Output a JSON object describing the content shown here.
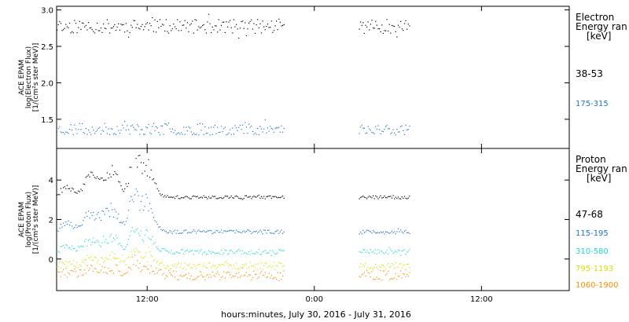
{
  "chart_data": [
    {
      "type": "scatter",
      "panel": "electron",
      "ylabel": [
        "ACE EPAM",
        "log(Electron Flux)",
        "[1/(cm²s ster MeV)]"
      ],
      "ylim": [
        1.1,
        3.05
      ],
      "yticks": [
        1.5,
        2.0,
        2.5,
        3.0
      ],
      "ytick_labels": [
        "1.5",
        "2.0",
        "2.5",
        "3.0"
      ],
      "legend_title": [
        "Electron",
        "Energy ran",
        "[keV]"
      ],
      "series": [
        {
          "name": "38-53",
          "color": "#000000",
          "mean": 2.78,
          "noise": 0.06,
          "seed": 11
        },
        {
          "name": "175-315",
          "color": "#1e73c8",
          "mean": 1.37,
          "noise": 0.05,
          "seed": 23
        }
      ]
    },
    {
      "type": "scatter",
      "panel": "proton",
      "ylabel": [
        "ACE EPAM",
        "log(Proton Flux)",
        "[1/(cm²s ster MeV)]"
      ],
      "ylim": [
        -1.6,
        5.6
      ],
      "yticks": [
        0,
        2,
        4
      ],
      "ytick_labels": [
        "0",
        "2",
        "4"
      ],
      "legend_title": [
        "Proton",
        "Energy ran",
        "[keV]"
      ],
      "series": [
        {
          "name": "47-68",
          "color": "#000000",
          "mean": 3.15,
          "noise": 0.05,
          "seed": 31
        },
        {
          "name": "115-195",
          "color": "#1e73c8",
          "mean": 1.4,
          "noise": 0.06,
          "seed": 37
        },
        {
          "name": "310-580",
          "color": "#20d8d0",
          "mean": 0.38,
          "noise": 0.08,
          "seed": 41
        },
        {
          "name": "795-1193",
          "color": "#d8e000",
          "mean": -0.33,
          "noise": 0.12,
          "seed": 43
        },
        {
          "name": "1060-1900",
          "color": "#ff8c00",
          "mean": -0.8,
          "noise": 0.15,
          "seed": 47
        }
      ]
    }
  ],
  "x_axis": {
    "label": "hours:minutes, July 30, 2016 - July 31, 2016",
    "range_hours": [
      5.5,
      42.3
    ],
    "ticks": [
      {
        "hour": 12,
        "label": "12:00"
      },
      {
        "hour": 24,
        "label": "0:00"
      },
      {
        "hour": 36,
        "label": "12:00"
      }
    ],
    "data_segments": [
      [
        5.5,
        21.8
      ],
      [
        27.2,
        30.8
      ]
    ]
  }
}
